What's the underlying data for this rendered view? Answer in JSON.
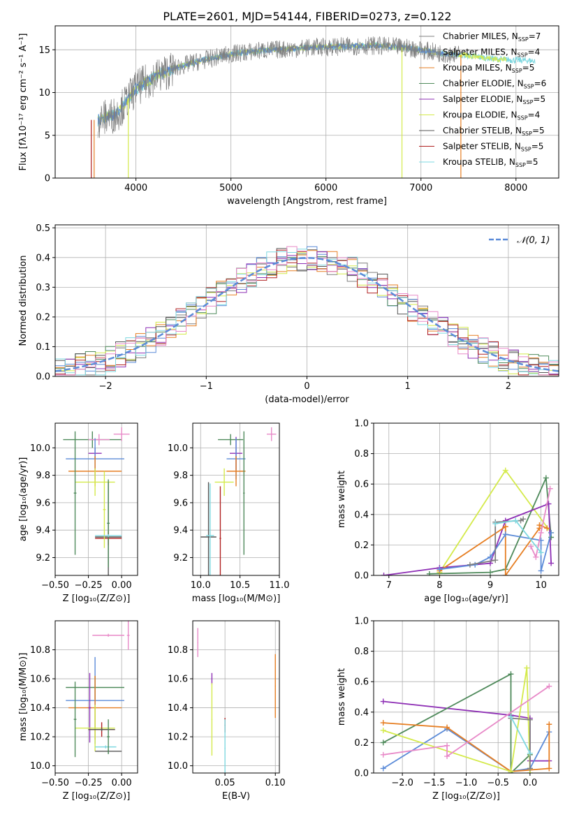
{
  "figure_title": "PLATE=2601, MJD=54144, FIBERID=0273, z=0.122",
  "colors": {
    "Chabrier MILES": "#7f7f7f",
    "Salpeter MILES": "#5b8bd8",
    "Kroupa MILES": "#e67e22",
    "Chabrier ELODIE": "#4f8a5b",
    "Salpeter ELODIE": "#8e2fb5",
    "Kroupa ELODIE": "#d4ea4a",
    "Chabrier STELIB": "#555555",
    "Salpeter STELIB": "#b02020",
    "Kroupa STELIB": "#7ed8e0",
    "extra": "#e88ac8",
    "normal": "#5b8bd8"
  },
  "chart_data": [
    {
      "id": "spectrum",
      "type": "line",
      "xlabel": "wavelength [Angstrom, rest frame]",
      "ylabel": "Flux [fλ10⁻¹⁷ erg cm⁻² s⁻¹ A⁻¹]",
      "xlim": [
        3150,
        8450
      ],
      "ylim": [
        0,
        17.8
      ],
      "xticks": [
        4000,
        5000,
        6000,
        7000,
        8000
      ],
      "yticks": [
        0,
        5,
        10,
        15
      ],
      "legend_position": "top-right",
      "legend": [
        {
          "label": "Chabrier MILES, N",
          "sub": "SSP",
          "suffix": "=7",
          "color": "#7f7f7f"
        },
        {
          "label": "Salpeter MILES, N",
          "sub": "SSP",
          "suffix": "=4",
          "color": "#5b8bd8"
        },
        {
          "label": "Kroupa MILES, N",
          "sub": "SSP",
          "suffix": "=5",
          "color": "#e67e22"
        },
        {
          "label": "Chabrier ELODIE, N",
          "sub": "SSP",
          "suffix": "=6",
          "color": "#4f8a5b"
        },
        {
          "label": "Salpeter ELODIE, N",
          "sub": "SSP",
          "suffix": "=5",
          "color": "#8e2fb5"
        },
        {
          "label": "Kroupa ELODIE, N",
          "sub": "SSP",
          "suffix": "=4",
          "color": "#d4ea4a"
        },
        {
          "label": "Chabrier STELIB, N",
          "sub": "SSP",
          "suffix": "=5",
          "color": "#555555"
        },
        {
          "label": "Salpeter STELIB, N",
          "sub": "SSP",
          "suffix": "=5",
          "color": "#b02020"
        },
        {
          "label": "Kroupa STELIB, N",
          "sub": "SSP",
          "suffix": "=5",
          "color": "#7ed8e0"
        }
      ],
      "continuum": {
        "x": [
          3600,
          3800,
          4000,
          4200,
          4400,
          4600,
          4800,
          5000,
          5300,
          5600,
          5900,
          6200,
          6500,
          6800,
          7000,
          7200,
          7400,
          7600,
          7800,
          8000,
          8200
        ],
        "y": [
          6.8,
          7.5,
          10.5,
          11.8,
          12.8,
          13.5,
          14.0,
          14.5,
          14.9,
          15.1,
          15.3,
          15.4,
          15.5,
          15.3,
          15.0,
          14.6,
          14.4,
          14.2,
          13.9,
          13.8,
          13.7
        ]
      },
      "drops": [
        {
          "x": 3530,
          "color": "#b02020"
        },
        {
          "x": 3560,
          "color": "#e67e22"
        },
        {
          "x": 3920,
          "color": "#d4ea4a"
        },
        {
          "x": 6800,
          "color": "#d4ea4a"
        },
        {
          "x": 7420,
          "color": "#e67e22"
        }
      ]
    },
    {
      "id": "residuals",
      "type": "line",
      "xlabel": "(data-model)/error",
      "ylabel": "Normed distribution",
      "xlim": [
        -2.5,
        2.5
      ],
      "ylim": [
        0,
        0.51
      ],
      "xticks": [
        -2,
        -1,
        0,
        1,
        2
      ],
      "yticks": [
        0.0,
        0.1,
        0.2,
        0.3,
        0.4,
        0.5
      ],
      "legend_position": "top-right",
      "normal_label": "𝒩(0, 1)",
      "bin_width": 0.1
    },
    {
      "id": "age-vs-Z",
      "type": "scatter",
      "xlabel": "Z [log₁₀(Z/Z⊙)]",
      "ylabel": "age  [log₁₀(age/yr)]",
      "xlim": [
        -0.5,
        0.12
      ],
      "ylim": [
        9.07,
        10.18
      ],
      "xticks": [
        -0.5,
        -0.25,
        0.0
      ],
      "xticklabels": [
        "−0.50",
        "−0.25",
        "0.00"
      ],
      "yticks": [
        9.2,
        9.4,
        9.6,
        9.8,
        10.0
      ],
      "points": [
        {
          "x": -0.22,
          "y": 10.06,
          "xerr": 0.22,
          "yerr": 0.06,
          "color": "#4f8a5b"
        },
        {
          "x": -0.17,
          "y": 10.06,
          "xerr": 0.08,
          "yerr": 0.04,
          "color": "#e88ac8"
        },
        {
          "x": 0.0,
          "y": 10.1,
          "xerr": 0.06,
          "yerr": 0.05,
          "color": "#e88ac8"
        },
        {
          "x": -0.2,
          "y": 9.96,
          "xerr": 0.05,
          "yerr": 0.04,
          "color": "#8e2fb5"
        },
        {
          "x": -0.2,
          "y": 9.92,
          "xerr": 0.22,
          "yerr": 0.15,
          "color": "#5b8bd8"
        },
        {
          "x": -0.2,
          "y": 9.83,
          "xerr": 0.2,
          "yerr": 0.11,
          "color": "#e67e22"
        },
        {
          "x": -0.2,
          "y": 9.75,
          "xerr": 0.15,
          "yerr": 0.1,
          "color": "#d4ea4a"
        },
        {
          "x": -0.1,
          "y": 9.35,
          "xerr": 0.1,
          "yerr": 0.4,
          "color": "#555555"
        },
        {
          "x": -0.1,
          "y": 9.34,
          "xerr": 0.1,
          "yerr": 0.05,
          "color": "#b02020"
        },
        {
          "x": -0.35,
          "y": 9.67,
          "xerr": 0.01,
          "yerr": 0.45,
          "color": "#4f8a5b"
        },
        {
          "x": -0.13,
          "y": 9.55,
          "xerr": 0.01,
          "yerr": 0.28,
          "color": "#d4ea4a"
        },
        {
          "x": -0.1,
          "y": 9.45,
          "xerr": 0.01,
          "yerr": 0.32,
          "color": "#4f8a5b"
        },
        {
          "x": -0.1,
          "y": 9.36,
          "xerr": 0.1,
          "yerr": 0.01,
          "color": "#7ed8e0"
        }
      ]
    },
    {
      "id": "age-vs-mass",
      "type": "scatter",
      "xlabel": "mass [log₁₀(M/M⊙)]",
      "ylabel": "",
      "xlim": [
        9.9,
        11.0
      ],
      "ylim": [
        9.07,
        10.18
      ],
      "xticks": [
        10.0,
        10.5,
        11.0
      ],
      "xticklabels": [
        "10.0",
        "10.5",
        "11.0"
      ],
      "yticks": [
        9.2,
        9.4,
        9.6,
        9.8,
        10.0
      ],
      "points": [
        {
          "x": 10.38,
          "y": 10.06,
          "xerr": 0.16,
          "yerr": 0.04,
          "color": "#4f8a5b"
        },
        {
          "x": 10.9,
          "y": 10.1,
          "xerr": 0.06,
          "yerr": 0.05,
          "color": "#e88ac8"
        },
        {
          "x": 10.45,
          "y": 9.96,
          "xerr": 0.08,
          "yerr": 0.12,
          "color": "#8e2fb5"
        },
        {
          "x": 10.45,
          "y": 9.92,
          "xerr": 0.12,
          "yerr": 0.15,
          "color": "#5b8bd8"
        },
        {
          "x": 10.45,
          "y": 9.83,
          "xerr": 0.12,
          "yerr": 0.11,
          "color": "#e67e22"
        },
        {
          "x": 10.3,
          "y": 9.75,
          "xerr": 0.12,
          "yerr": 0.1,
          "color": "#d4ea4a"
        },
        {
          "x": 10.55,
          "y": 9.67,
          "xerr": 0.01,
          "yerr": 0.45,
          "color": "#4f8a5b"
        },
        {
          "x": 10.1,
          "y": 9.35,
          "xerr": 0.1,
          "yerr": 0.4,
          "color": "#555555"
        },
        {
          "x": 10.12,
          "y": 9.36,
          "xerr": 0.05,
          "yerr": 0.38,
          "color": "#7ed8e0"
        },
        {
          "x": 10.25,
          "y": 9.34,
          "xerr": 0.01,
          "yerr": 0.38,
          "color": "#b02020"
        }
      ]
    },
    {
      "id": "weight-vs-age",
      "type": "line",
      "xlabel": "age  [log₁₀(age/yr)]",
      "ylabel": "mass weight",
      "xlim": [
        6.7,
        10.35
      ],
      "ylim": [
        0,
        1
      ],
      "xticks": [
        7,
        8,
        9,
        10
      ],
      "yticks": [
        0.0,
        0.2,
        0.4,
        0.6,
        0.8,
        1.0
      ],
      "series": [
        {
          "color": "#d4ea4a",
          "x": [
            8.0,
            9.3,
            10.2
          ],
          "y": [
            0.02,
            0.69,
            0.28
          ]
        },
        {
          "color": "#4f8a5b",
          "x": [
            7.8,
            9.0,
            9.3,
            10.1,
            10.2
          ],
          "y": [
            0.01,
            0.02,
            0.04,
            0.64,
            0.25
          ]
        },
        {
          "color": "#8e2fb5",
          "x": [
            6.9,
            8.0,
            9.0,
            9.3,
            10.15,
            10.2
          ],
          "y": [
            0.0,
            0.05,
            0.08,
            0.36,
            0.47,
            0.08
          ]
        },
        {
          "color": "#e67e22",
          "x": [
            8.0,
            9.3,
            9.3,
            9.97,
            9.97,
            10.12
          ],
          "y": [
            0.03,
            0.32,
            0.0,
            0.31,
            0.33,
            0.31
          ]
        },
        {
          "color": "#5b8bd8",
          "x": [
            8.0,
            8.7,
            9.0,
            9.3,
            10.0,
            10.0,
            10.2
          ],
          "y": [
            0.04,
            0.07,
            0.12,
            0.27,
            0.23,
            0.03,
            0.28
          ]
        },
        {
          "color": "#7f7f7f",
          "x": [
            8.6,
            9.1,
            9.1,
            9.6,
            9.65
          ],
          "y": [
            0.07,
            0.1,
            0.35,
            0.36,
            0.37
          ]
        },
        {
          "color": "#e88ac8",
          "x": [
            9.8,
            9.9,
            10.0,
            10.18
          ],
          "y": [
            0.19,
            0.12,
            0.28,
            0.57
          ]
        },
        {
          "color": "#7ed8e0",
          "x": [
            9.1,
            9.5,
            10.0
          ],
          "y": [
            0.34,
            0.36,
            0.15
          ]
        }
      ]
    },
    {
      "id": "mass-vs-Z",
      "type": "scatter",
      "xlabel": "Z [log₁₀(Z/Z⊙)]",
      "ylabel": "mass [log₁₀(M/M⊙)]",
      "xlim": [
        -0.5,
        0.12
      ],
      "ylim": [
        9.95,
        11.0
      ],
      "xticks": [
        -0.5,
        -0.25,
        0.0
      ],
      "xticklabels": [
        "−0.50",
        "−0.25",
        "0.00"
      ],
      "yticks": [
        10.0,
        10.2,
        10.4,
        10.6,
        10.8
      ],
      "points": [
        {
          "x": -0.1,
          "y": 10.9,
          "xerr": 0.12,
          "yerr": 0.01,
          "color": "#e88ac8"
        },
        {
          "x": 0.05,
          "y": 10.9,
          "xerr": 0.01,
          "yerr": 0.1,
          "color": "#e88ac8"
        },
        {
          "x": -0.2,
          "y": 10.54,
          "xerr": 0.22,
          "yerr": 0.08,
          "color": "#4f8a5b"
        },
        {
          "x": -0.2,
          "y": 10.45,
          "xerr": 0.22,
          "yerr": 0.3,
          "color": "#5b8bd8"
        },
        {
          "x": -0.2,
          "y": 10.4,
          "xerr": 0.2,
          "yerr": 0.22,
          "color": "#e67e22"
        },
        {
          "x": -0.24,
          "y": 10.4,
          "xerr": 0.01,
          "yerr": 0.24,
          "color": "#8e2fb5"
        },
        {
          "x": -0.2,
          "y": 10.26,
          "xerr": 0.15,
          "yerr": 0.16,
          "color": "#d4ea4a"
        },
        {
          "x": -0.15,
          "y": 10.25,
          "xerr": 0.1,
          "yerr": 0.05,
          "color": "#b02020"
        },
        {
          "x": -0.15,
          "y": 10.25,
          "xerr": 0.1,
          "yerr": 0.01,
          "color": "#555555"
        },
        {
          "x": -0.35,
          "y": 10.32,
          "xerr": 0.01,
          "yerr": 0.26,
          "color": "#4f8a5b"
        },
        {
          "x": -0.12,
          "y": 10.13,
          "xerr": 0.08,
          "yerr": 0.01,
          "color": "#7ed8e0"
        },
        {
          "x": -0.1,
          "y": 10.1,
          "xerr": 0.1,
          "yerr": 0.01,
          "color": "#555555"
        },
        {
          "x": -0.1,
          "y": 10.2,
          "xerr": 0.01,
          "yerr": 0.12,
          "color": "#4f8a5b"
        }
      ]
    },
    {
      "id": "mass-vs-EBV",
      "type": "scatter",
      "xlabel": "E(B-V)",
      "ylabel": "",
      "xlim": [
        0.018,
        0.104
      ],
      "ylim": [
        9.95,
        11.0
      ],
      "xticks": [
        0.05,
        0.1
      ],
      "xticklabels": [
        "0.05",
        "0.10"
      ],
      "yticks": [
        10.0,
        10.2,
        10.4,
        10.6,
        10.8
      ],
      "points": [
        {
          "x": 0.023,
          "y": 10.85,
          "xerr": 0.0,
          "yerr": 0.1,
          "color": "#e88ac8"
        },
        {
          "x": 0.037,
          "y": 10.6,
          "xerr": 0.0,
          "yerr": 0.04,
          "color": "#8e2fb5"
        },
        {
          "x": 0.037,
          "y": 10.32,
          "xerr": 0.0,
          "yerr": 0.25,
          "color": "#d4ea4a"
        },
        {
          "x": 0.05,
          "y": 10.28,
          "xerr": 0.0,
          "yerr": 0.05,
          "color": "#b02020"
        },
        {
          "x": 0.05,
          "y": 10.12,
          "xerr": 0.0,
          "yerr": 0.2,
          "color": "#7ed8e0"
        },
        {
          "x": 0.1,
          "y": 10.55,
          "xerr": 0.0,
          "yerr": 0.22,
          "color": "#e67e22"
        }
      ]
    },
    {
      "id": "weight-vs-Z",
      "type": "line",
      "xlabel": "Z [log₁₀(Z/Z⊙)]",
      "ylabel": "mass weight",
      "xlim": [
        -2.45,
        0.45
      ],
      "ylim": [
        0,
        1
      ],
      "xticks": [
        -2.0,
        -1.5,
        -1.0,
        -0.5,
        0.0
      ],
      "xticklabels": [
        "−2.0",
        "−1.5",
        "−1.0",
        "−0.5",
        "0.0"
      ],
      "yticks": [
        0.0,
        0.2,
        0.4,
        0.6,
        0.8,
        1.0
      ],
      "series": [
        {
          "color": "#8e2fb5",
          "x": [
            -2.3,
            -0.3,
            0.0,
            0.0,
            0.3
          ],
          "y": [
            0.47,
            0.38,
            0.36,
            0.08,
            0.08
          ]
        },
        {
          "color": "#4f8a5b",
          "x": [
            -2.3,
            -0.3,
            -0.3,
            0.0
          ],
          "y": [
            0.2,
            0.65,
            0.0,
            0.12
          ]
        },
        {
          "color": "#5b8bd8",
          "x": [
            -2.3,
            -1.3,
            -0.3,
            0.0,
            0.3
          ],
          "y": [
            0.03,
            0.29,
            0.01,
            0.03,
            0.27
          ]
        },
        {
          "color": "#e67e22",
          "x": [
            -2.3,
            -1.3,
            -0.3,
            0.3,
            0.3
          ],
          "y": [
            0.33,
            0.3,
            0.01,
            0.03,
            0.32
          ]
        },
        {
          "color": "#d4ea4a",
          "x": [
            -2.3,
            -0.3,
            -0.05,
            0.0
          ],
          "y": [
            0.28,
            0.01,
            0.69,
            0.0
          ]
        },
        {
          "color": "#e88ac8",
          "x": [
            -2.3,
            -1.3,
            -1.3,
            0.3
          ],
          "y": [
            0.12,
            0.18,
            0.11,
            0.57
          ]
        },
        {
          "color": "#7f7f7f",
          "x": [
            -0.3,
            0.0,
            0.0
          ],
          "y": [
            0.36,
            0.35,
            0.03
          ]
        },
        {
          "color": "#7ed8e0",
          "x": [
            -0.3,
            0.0
          ],
          "y": [
            0.37,
            0.13
          ]
        }
      ]
    }
  ]
}
